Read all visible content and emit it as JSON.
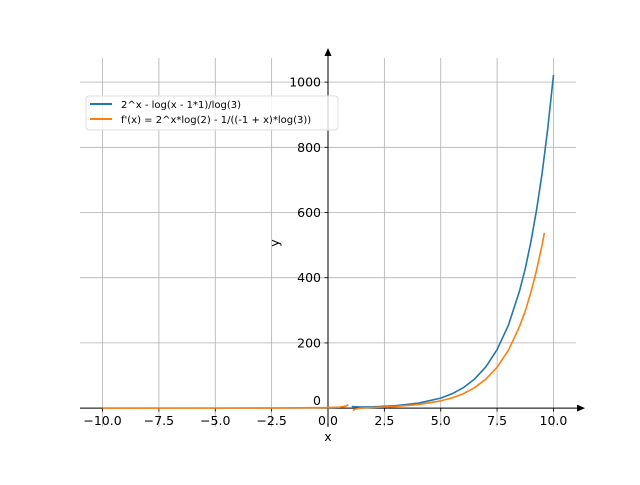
{
  "chart_data": {
    "type": "line",
    "title": "",
    "xlabel": "x",
    "ylabel": "y",
    "xlim": [
      -11,
      11
    ],
    "ylim": [
      -58,
      1074
    ],
    "grid": true,
    "legend_position": "top-left",
    "x_ticks": [
      -10.0,
      -7.5,
      -5.0,
      -2.5,
      0.0,
      2.5,
      5.0,
      7.5,
      10.0
    ],
    "x_tick_labels": [
      "−10.0",
      "−7.5",
      "−5.0",
      "−2.5",
      "0.0",
      "2.5",
      "5.0",
      "7.5",
      "10.0"
    ],
    "y_ticks": [
      0,
      200,
      400,
      600,
      800,
      1000
    ],
    "y_tick_labels": [
      "0",
      "200",
      "400",
      "600",
      "800",
      "1000"
    ],
    "series": [
      {
        "name": "2^x - log(x - 1*1)/log(3)",
        "color": "#1f77b4",
        "segments": [
          {
            "x": [
              1.05,
              1.5,
              2,
              3,
              4,
              5,
              5.5,
              6,
              6.5,
              7,
              7.5,
              8,
              8.5,
              8.75,
              9,
              9.25,
              9.5,
              9.75,
              10
            ],
            "y": [
              4.8,
              3.46,
              4,
              7.37,
              15,
              30.7,
              43.9,
              62.5,
              89,
              126.4,
              179.3,
              254.2,
              360.2,
              428.6,
              510.1,
              607,
              722.1,
              859.1,
              1022
            ]
          }
        ]
      },
      {
        "name": "f'(x) = 2^x*log(2) - 1/((-1 + x)*log(3))",
        "color": "#ff7f0e",
        "segments": [
          {
            "x": [
              -10,
              -5,
              -2,
              0,
              0.5,
              0.8,
              0.9
            ],
            "y": [
              0.08,
              0.17,
              0.48,
              1.6,
              2.8,
              5.8,
              10.4
            ]
          },
          {
            "x": [
              1.1,
              1.2,
              1.5,
              2,
              3,
              4,
              5,
              5.5,
              6,
              6.5,
              7,
              7.5,
              8,
              8.5,
              8.75,
              9,
              9.25,
              9.5,
              9.6
            ],
            "y": [
              -7.6,
              -2.96,
              0.14,
              1.86,
              5.09,
              10.8,
              22,
              31.2,
              44.2,
              62.6,
              88.6,
              125.4,
              177.3,
              250.8,
              298.4,
              354.8,
              422,
              501.8,
              537.8
            ]
          }
        ]
      }
    ]
  }
}
